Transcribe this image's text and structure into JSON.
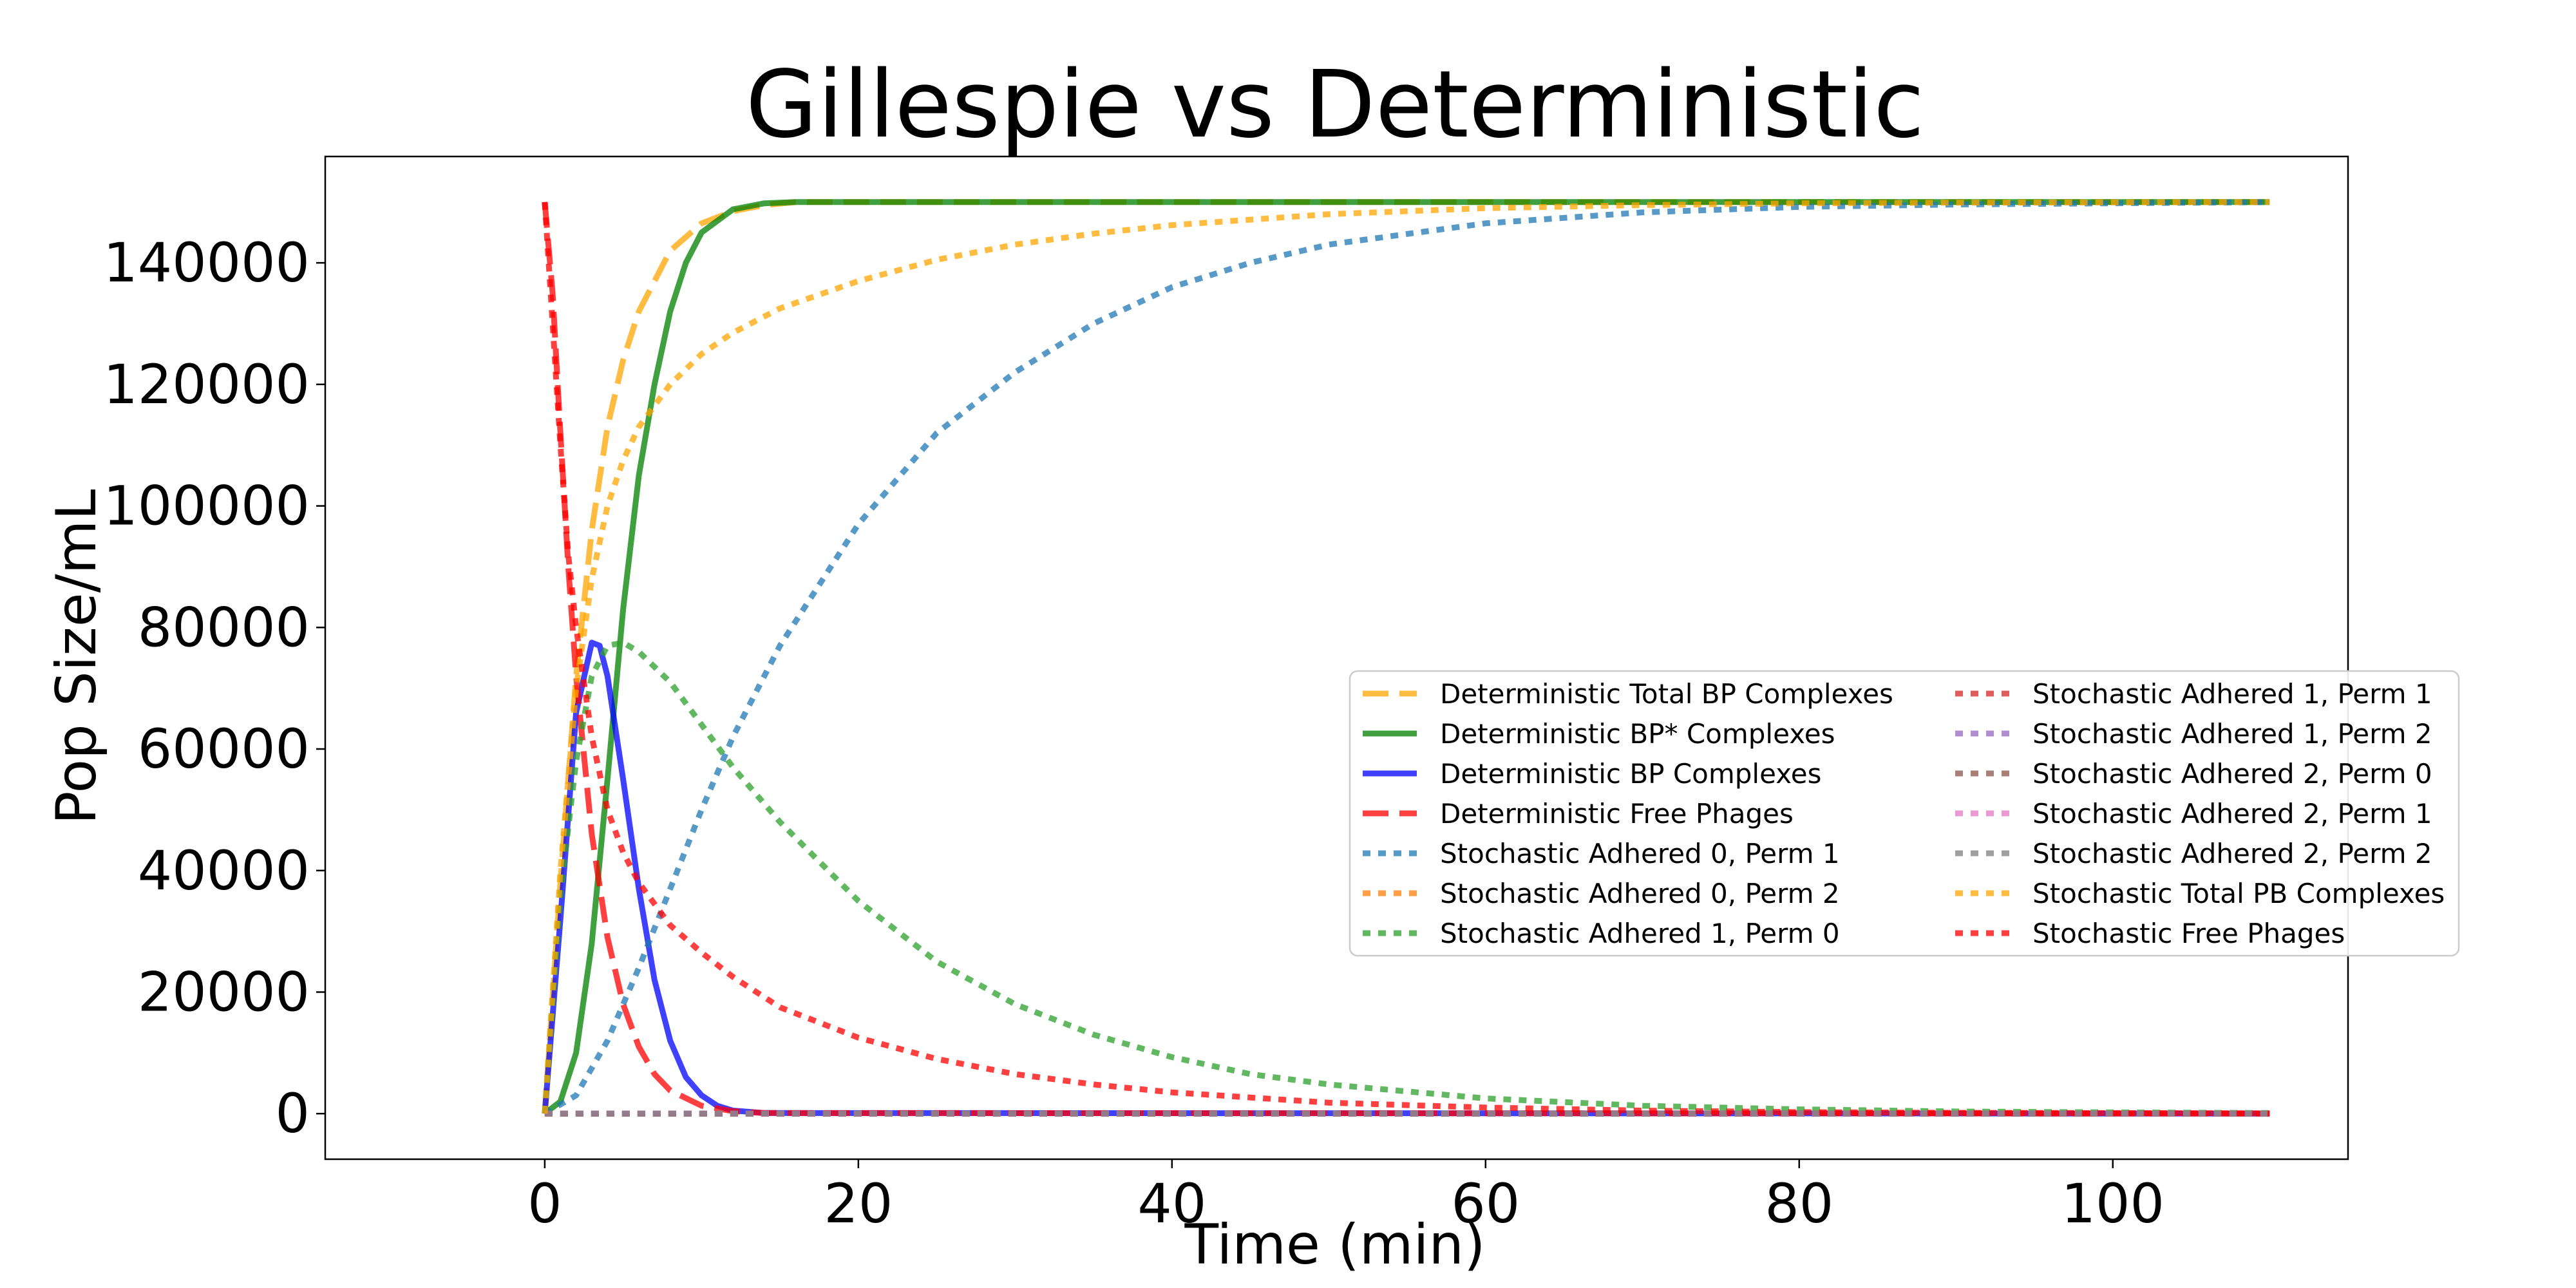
{
  "chart_data": {
    "type": "line",
    "title": "Gillespie vs Deterministic",
    "xlabel": "Time (min)",
    "ylabel": "Pop Size/mL",
    "xlim": [
      -14,
      115
    ],
    "ylim": [
      -7500,
      157500
    ],
    "x_ticks": [
      0,
      20,
      40,
      60,
      80,
      100
    ],
    "y_ticks": [
      0,
      20000,
      40000,
      60000,
      80000,
      100000,
      120000,
      140000
    ],
    "grid": false,
    "legend_placement": "center-right",
    "series": [
      {
        "name": "Deterministic Total BP Complexes",
        "color": "#ffa500",
        "style": "dashed",
        "x": [
          0,
          1,
          2,
          3,
          4,
          5,
          6,
          8,
          10,
          12,
          14,
          16,
          110
        ],
        "y": [
          0,
          38000,
          72000,
          96000,
          113000,
          124000,
          132000,
          142000,
          146500,
          148500,
          149500,
          150000,
          150000
        ]
      },
      {
        "name": "Deterministic BP* Complexes",
        "color": "#008000",
        "style": "solid",
        "x": [
          0,
          1,
          2,
          3,
          4,
          5,
          6,
          7,
          8,
          9,
          10,
          12,
          14,
          16,
          110
        ],
        "y": [
          0,
          2000,
          10000,
          28000,
          55000,
          83000,
          105000,
          120000,
          132000,
          140000,
          145000,
          148800,
          149800,
          150000,
          150000
        ]
      },
      {
        "name": "Deterministic BP Complexes",
        "color": "#0000ff",
        "style": "solid",
        "x": [
          0,
          1,
          2,
          3,
          3.5,
          4,
          5,
          6,
          7,
          8,
          9,
          10,
          11,
          12,
          14,
          110
        ],
        "y": [
          0,
          32000,
          66000,
          77500,
          77000,
          72000,
          55000,
          37000,
          22000,
          12000,
          6000,
          3000,
          1300,
          500,
          100,
          0
        ]
      },
      {
        "name": "Deterministic Free Phages",
        "color": "#ff0000",
        "style": "dashed",
        "x": [
          0,
          0.5,
          1,
          1.5,
          2,
          3,
          4,
          5,
          6,
          7,
          8,
          10,
          12,
          14,
          110
        ],
        "y": [
          150000,
          135000,
          112000,
          90000,
          72000,
          46000,
          29000,
          18000,
          11000,
          6500,
          3800,
          1300,
          400,
          100,
          0
        ]
      },
      {
        "name": "Stochastic Adhered 0, Perm 1",
        "color": "#1f77b4",
        "style": "dotted",
        "x": [
          0,
          2,
          4,
          6,
          8,
          10,
          12,
          15,
          20,
          25,
          30,
          35,
          40,
          45,
          50,
          60,
          70,
          80,
          90,
          110
        ],
        "y": [
          0,
          3000,
          12000,
          24000,
          37000,
          50000,
          62000,
          77000,
          97000,
          112000,
          122000,
          130000,
          136000,
          140000,
          143000,
          146500,
          148300,
          149200,
          149600,
          150000
        ]
      },
      {
        "name": "Stochastic Adhered 0, Perm 2",
        "color": "#ff7f0e",
        "style": "dotted",
        "x": [
          0,
          110
        ],
        "y": [
          0,
          0
        ]
      },
      {
        "name": "Stochastic Adhered 1, Perm 0",
        "color": "#2ca02c",
        "style": "dotted",
        "x": [
          0,
          1,
          2,
          3,
          4,
          5,
          6,
          8,
          10,
          12,
          15,
          20,
          25,
          30,
          35,
          40,
          45,
          50,
          60,
          70,
          80,
          90,
          100,
          110
        ],
        "y": [
          0,
          36000,
          58000,
          72000,
          77000,
          77500,
          76000,
          71000,
          64000,
          57000,
          48000,
          35000,
          25000,
          18000,
          13000,
          9300,
          6500,
          4800,
          2500,
          1300,
          700,
          350,
          200,
          100
        ]
      },
      {
        "name": "Stochastic Adhered 1, Perm 1",
        "color": "#d62728",
        "style": "dotted",
        "x": [
          0,
          110
        ],
        "y": [
          0,
          0
        ]
      },
      {
        "name": "Stochastic Adhered 1, Perm 2",
        "color": "#9467bd",
        "style": "dotted",
        "x": [
          0,
          110
        ],
        "y": [
          0,
          0
        ]
      },
      {
        "name": "Stochastic Adhered 2, Perm 0",
        "color": "#8c564b",
        "style": "dotted",
        "x": [
          0,
          110
        ],
        "y": [
          0,
          0
        ]
      },
      {
        "name": "Stochastic Adhered 2, Perm 1",
        "color": "#e377c2",
        "style": "dotted",
        "x": [
          0,
          110
        ],
        "y": [
          0,
          0
        ]
      },
      {
        "name": "Stochastic Adhered 2, Perm 2",
        "color": "#7f7f7f",
        "style": "dotted",
        "x": [
          0,
          110
        ],
        "y": [
          0,
          0
        ]
      },
      {
        "name": "Stochastic Total PB Complexes",
        "color": "#ffa500",
        "style": "dotted",
        "x": [
          0,
          0.5,
          1,
          2,
          3,
          4,
          5,
          6,
          8,
          10,
          12,
          15,
          20,
          25,
          30,
          35,
          40,
          50,
          60,
          70,
          80,
          90,
          110
        ],
        "y": [
          0,
          20000,
          40000,
          70000,
          88000,
          100000,
          107500,
          113000,
          120000,
          125000,
          128500,
          132500,
          137000,
          140500,
          143000,
          144800,
          146200,
          148000,
          149000,
          149500,
          149800,
          149900,
          150000
        ]
      },
      {
        "name": "Stochastic Free Phages",
        "color": "#ff0000",
        "style": "dotted",
        "x": [
          0,
          0.5,
          1,
          1.5,
          2,
          3,
          4,
          5,
          6,
          8,
          10,
          12,
          15,
          20,
          25,
          30,
          35,
          40,
          50,
          60,
          70,
          80,
          90,
          110
        ],
        "y": [
          150000,
          130000,
          110000,
          92000,
          80000,
          62000,
          50000,
          43000,
          38000,
          31000,
          26500,
          22500,
          17500,
          12500,
          9000,
          6500,
          4800,
          3500,
          1800,
          1000,
          500,
          250,
          130,
          50
        ]
      }
    ]
  }
}
